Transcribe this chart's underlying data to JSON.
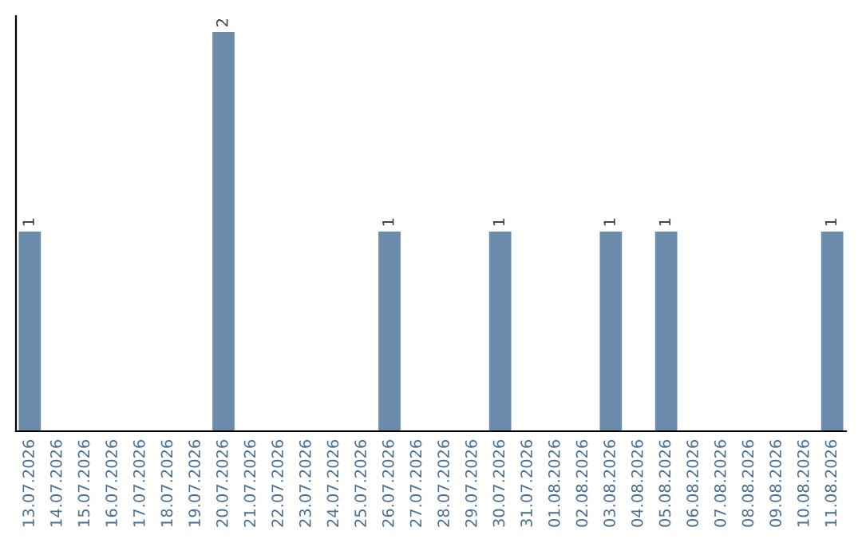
{
  "chart_data": {
    "type": "bar",
    "categories": [
      "13.07.2026",
      "14.07.2026",
      "15.07.2026",
      "16.07.2026",
      "17.07.2026",
      "18.07.2026",
      "19.07.2026",
      "20.07.2026",
      "21.07.2026",
      "22.07.2026",
      "23.07.2026",
      "24.07.2026",
      "25.07.2026",
      "26.07.2026",
      "27.07.2026",
      "28.07.2026",
      "29.07.2026",
      "30.07.2026",
      "31.07.2026",
      "01.08.2026",
      "02.08.2026",
      "03.08.2026",
      "04.08.2026",
      "05.08.2026",
      "06.08.2026",
      "07.08.2026",
      "08.08.2026",
      "09.08.2026",
      "10.08.2026",
      "11.08.2026"
    ],
    "values": [
      1,
      0,
      0,
      0,
      0,
      0,
      0,
      2,
      0,
      0,
      0,
      0,
      0,
      1,
      0,
      0,
      0,
      1,
      0,
      0,
      0,
      1,
      0,
      1,
      0,
      0,
      0,
      0,
      0,
      1
    ],
    "value_labels": [
      "1",
      null,
      null,
      null,
      null,
      null,
      null,
      "2",
      null,
      null,
      null,
      null,
      null,
      "1",
      null,
      null,
      null,
      "1",
      null,
      null,
      null,
      "1",
      null,
      "1",
      null,
      null,
      null,
      null,
      null,
      "1"
    ],
    "color": "#6b8cab",
    "ylim": [
      0,
      2.08
    ],
    "tick_labels": "x",
    "grid": false,
    "legend": false
  }
}
